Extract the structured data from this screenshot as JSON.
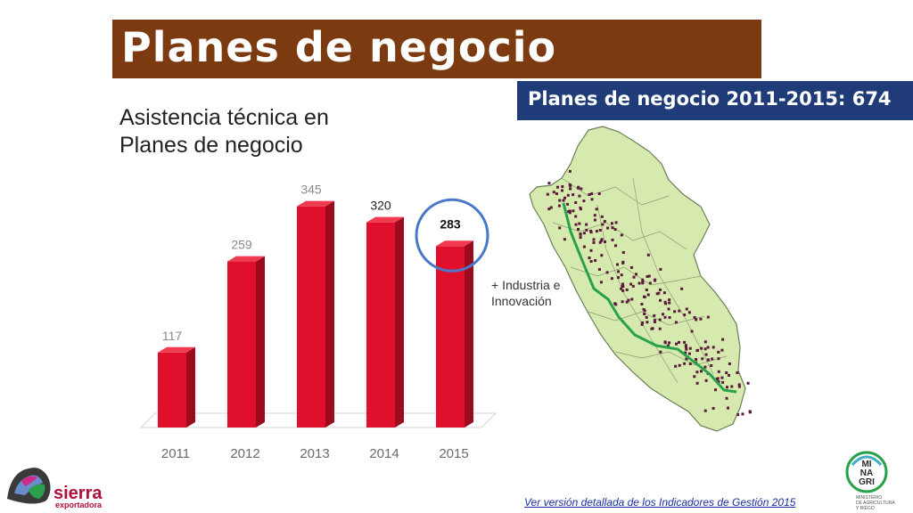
{
  "header": {
    "title": "Planes de negocio"
  },
  "subtitle": {
    "line1": "Asistencia técnica en",
    "line2": "Planes de negocio"
  },
  "map_badge": {
    "text": "Planes de negocio 2011-2015: 674"
  },
  "map_note": {
    "line1": "+ Industria e",
    "line2": "Innovación"
  },
  "footer": {
    "link_text": "Ver versión detallada de los Indicadores de Gestión 2015"
  },
  "logos": {
    "left": {
      "line1": "sierra",
      "line2": "exportadora"
    },
    "right": {
      "l1": "MI",
      "l2": "NA",
      "l3": "GRI",
      "s1": "MINISTERIO",
      "s2": "DE AGRICULTURA",
      "s3": "Y RIEGO"
    }
  },
  "colors": {
    "bar": "#e0102c",
    "bar_side": "#9c0a1e",
    "bar_top": "#f03a50",
    "highlight_circle": "#4a78c8",
    "map_fill": "#d6eab0",
    "map_points": "#5a1a3a",
    "map_line": "#2aa04a"
  },
  "chart_data": {
    "type": "bar",
    "categories": [
      "2011",
      "2012",
      "2013",
      "2014",
      "2015"
    ],
    "values": [
      117,
      259,
      345,
      320,
      283
    ],
    "highlighted_category": "2015",
    "ylim": [
      0,
      380
    ],
    "grid": false,
    "legend": "none"
  }
}
